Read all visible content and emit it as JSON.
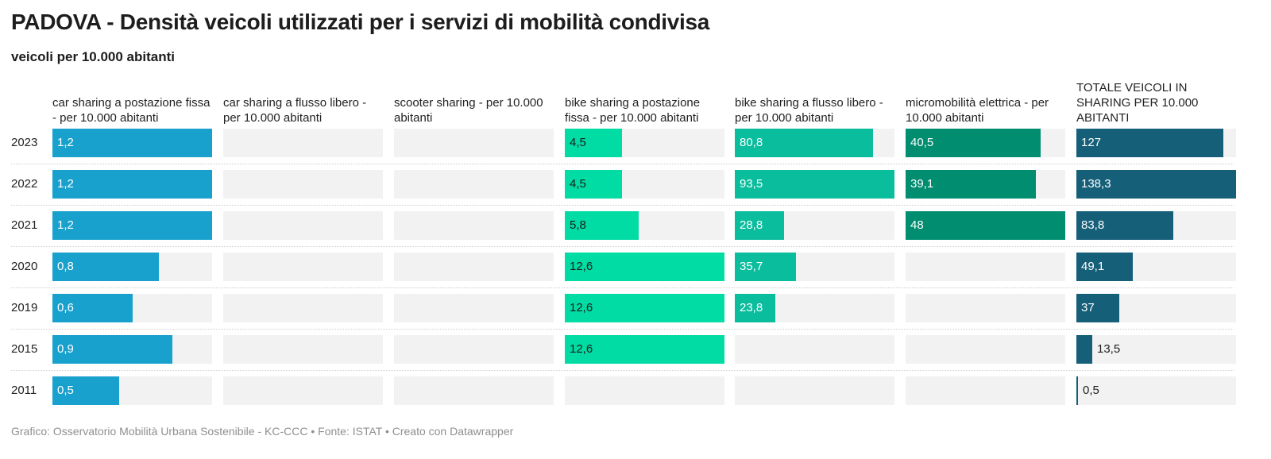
{
  "title": "PADOVA - Densità veicoli utilizzati per i servizi di mobilità condivisa",
  "subtitle": "veicoli per 10.000 abitanti",
  "footer": "Grafico: Osservatorio Mobilità Urbana Sostenibile - KC-CCC • Fonte: ISTAT • Creato con Datawrapper",
  "colors": {
    "car_sharing_postazione": "#19a1ce",
    "bike_sharing_postazione": "#00dca3",
    "bike_sharing_flusso": "#09bd9d",
    "micromobilita": "#008d70",
    "totale": "#155f79",
    "cell_background": "#f2f2f2"
  },
  "chart_data": {
    "type": "table",
    "rows": [
      "2023",
      "2022",
      "2021",
      "2020",
      "2019",
      "2015",
      "2011"
    ],
    "columns": [
      {
        "name": "car sharing a postazione fissa - per 10.000 abitanti",
        "values": [
          "1,2",
          "1,2",
          "1,2",
          "0,8",
          "0,6",
          "0,9",
          "0,5"
        ],
        "numeric": [
          1.2,
          1.2,
          1.2,
          0.8,
          0.6,
          0.9,
          0.5
        ],
        "max": 1.2
      },
      {
        "name": "car sharing a flusso libero - per 10.000 abitanti",
        "values": [
          "",
          "",
          "",
          "",
          "",
          "",
          ""
        ],
        "numeric": [
          null,
          null,
          null,
          null,
          null,
          null,
          null
        ],
        "max": 1
      },
      {
        "name": "scooter sharing - per 10.000 abitanti",
        "values": [
          "",
          "",
          "",
          "",
          "",
          "",
          ""
        ],
        "numeric": [
          null,
          null,
          null,
          null,
          null,
          null,
          null
        ],
        "max": 1
      },
      {
        "name": "bike sharing a postazione fissa - per 10.000 abitanti",
        "values": [
          "4,5",
          "4,5",
          "5,8",
          "12,6",
          "12,6",
          "12,6",
          ""
        ],
        "numeric": [
          4.5,
          4.5,
          5.8,
          12.6,
          12.6,
          12.6,
          null
        ],
        "max": 12.6
      },
      {
        "name": "bike sharing a flusso libero - per 10.000 abitanti",
        "values": [
          "80,8",
          "93,5",
          "28,8",
          "35,7",
          "23,8",
          "",
          ""
        ],
        "numeric": [
          80.8,
          93.5,
          28.8,
          35.7,
          23.8,
          null,
          null
        ],
        "max": 93.5
      },
      {
        "name": "micromobilità elettrica - per 10.000 abitanti",
        "values": [
          "40,5",
          "39,1",
          "48",
          "",
          "",
          "",
          ""
        ],
        "numeric": [
          40.5,
          39.1,
          48,
          null,
          null,
          null,
          null
        ],
        "max": 48
      },
      {
        "name": "TOTALE VEICOLI IN SHARING PER 10.000 ABITANTI",
        "values": [
          "127",
          "138,3",
          "83,8",
          "49,1",
          "37",
          "13,5",
          "0,5"
        ],
        "numeric": [
          127,
          138.3,
          83.8,
          49.1,
          37,
          13.5,
          0.5
        ],
        "max": 138.3
      }
    ]
  }
}
